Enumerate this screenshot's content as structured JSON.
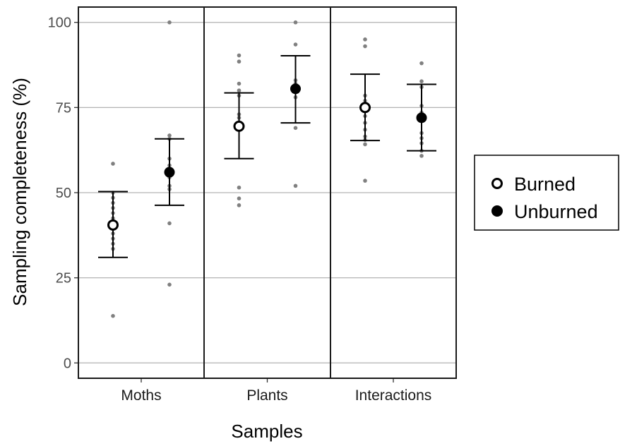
{
  "chart_data": {
    "type": "scatter",
    "xlabel": "Samples",
    "ylabel": "Sampling completeness (%)",
    "ylim": [
      -4.5,
      104.5
    ],
    "yticks": [
      0,
      25,
      50,
      75,
      100
    ],
    "grid": true,
    "legend_position": "right",
    "panels": [
      "Moths",
      "Plants",
      "Interactions"
    ],
    "series": [
      {
        "name": "Burned",
        "marker": "open-circle",
        "mean": [
          40.5,
          69.5,
          75.0
        ],
        "lower": [
          31.0,
          60.0,
          65.3
        ],
        "upper": [
          50.3,
          79.3,
          84.8
        ],
        "points": [
          [
            58.5,
            50.0,
            48.5,
            47.0,
            45.5,
            44.0,
            42.5,
            41.0,
            39.5,
            38.0,
            36.5,
            35.0,
            33.5,
            13.8
          ],
          [
            90.3,
            88.5,
            82.0,
            80.0,
            78.5,
            73.0,
            72.0,
            70.5,
            51.5,
            48.3,
            46.3
          ],
          [
            95.0,
            93.0,
            78.5,
            77.0,
            72.5,
            70.5,
            68.5,
            66.5,
            65.5,
            64.2,
            53.5
          ]
        ]
      },
      {
        "name": "Unburned",
        "marker": "filled-circle",
        "mean": [
          56.0,
          80.5,
          72.0
        ],
        "lower": [
          46.3,
          70.5,
          62.3
        ],
        "upper": [
          65.8,
          90.2,
          81.8
        ],
        "points": [
          [
            100.0,
            66.8,
            65.8,
            60.0,
            58.0,
            56.0,
            54.5,
            52.0,
            51.0,
            41.0,
            23.0
          ],
          [
            100.0,
            93.5,
            83.0,
            82.0,
            81.0,
            79.5,
            78.0,
            69.0,
            52.0
          ],
          [
            88.0,
            82.7,
            81.0,
            75.5,
            73.5,
            72.0,
            71.0,
            67.5,
            66.0,
            64.5,
            62.3,
            60.8
          ]
        ]
      }
    ],
    "colors": {
      "points": "#808080",
      "burned_fill": "#ffffff",
      "unburned_fill": "#000000",
      "grid": "#b3b3b3"
    }
  }
}
